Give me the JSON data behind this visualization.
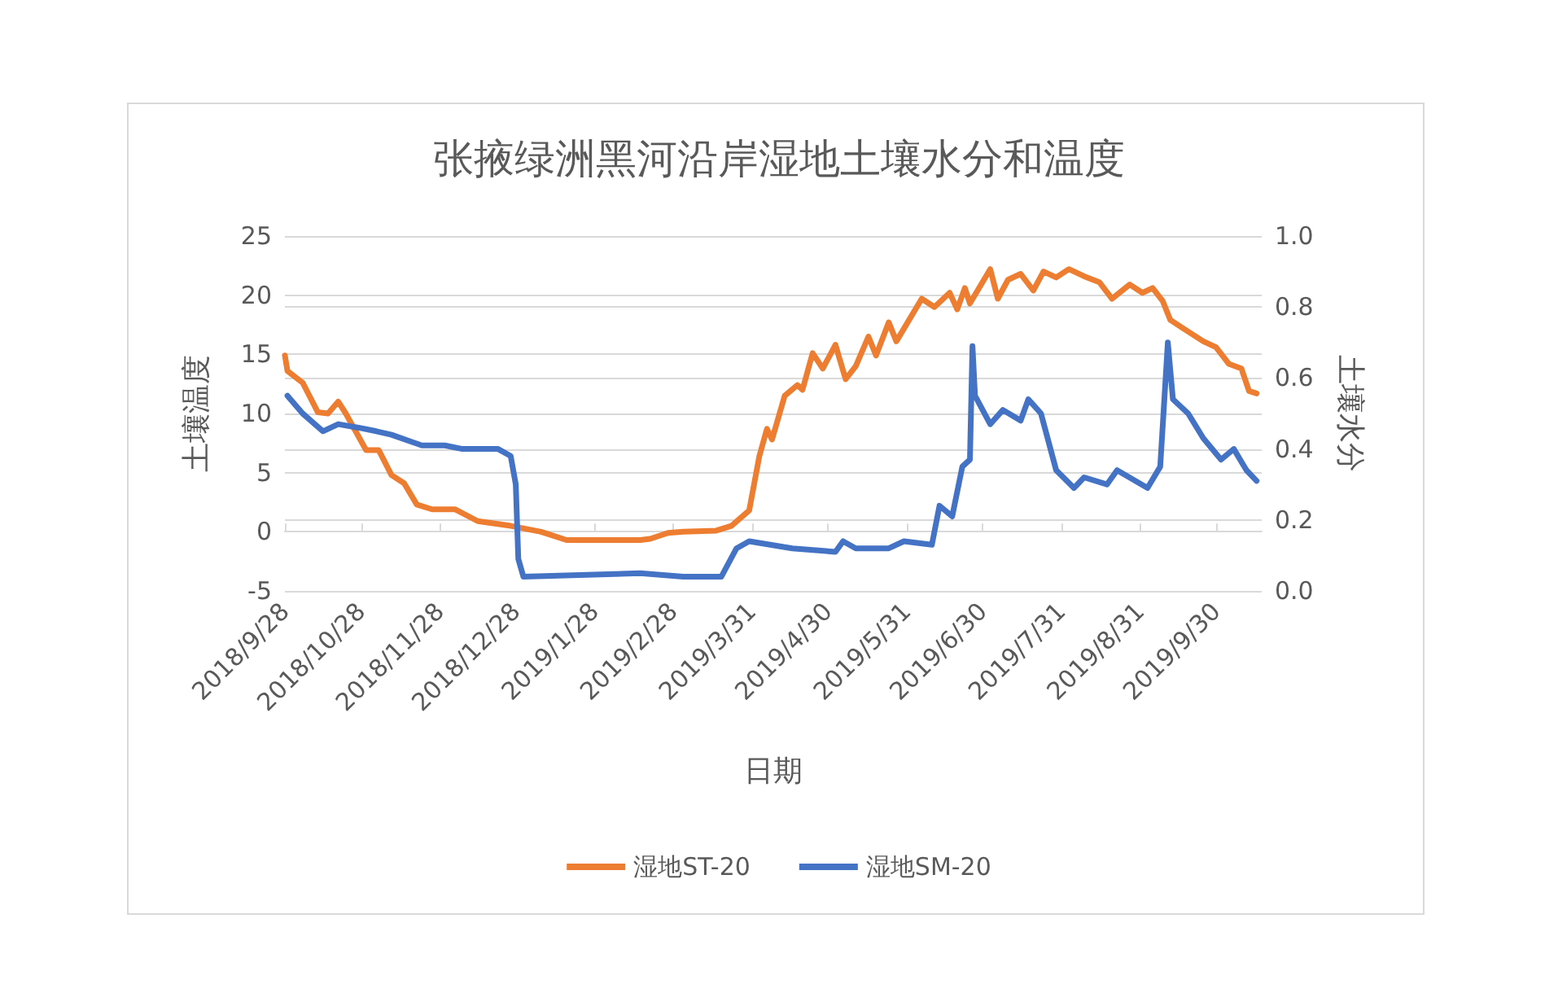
{
  "chart_data": {
    "type": "line",
    "title": "张掖绿洲黑河沿岸湿地土壤水分和温度",
    "xlabel": "日期",
    "ylabel": "土壤温度",
    "y2label": "土壤水分",
    "xlim": [
      "2018-09-28",
      "2019-10-18"
    ],
    "xticks": [
      {
        "value": "2018-09-28",
        "label": "2018/9/28"
      },
      {
        "value": "2018-10-28",
        "label": "2018/10/28"
      },
      {
        "value": "2018-11-28",
        "label": "2018/11/28"
      },
      {
        "value": "2018-12-28",
        "label": "2018/12/28"
      },
      {
        "value": "2019-01-28",
        "label": "2019/1/28"
      },
      {
        "value": "2019-02-28",
        "label": "2019/2/28"
      },
      {
        "value": "2019-03-31",
        "label": "2019/3/31"
      },
      {
        "value": "2019-04-30",
        "label": "2019/4/30"
      },
      {
        "value": "2019-05-31",
        "label": "2019/5/31"
      },
      {
        "value": "2019-06-30",
        "label": "2019/6/30"
      },
      {
        "value": "2019-07-31",
        "label": "2019/7/31"
      },
      {
        "value": "2019-08-31",
        "label": "2019/8/31"
      },
      {
        "value": "2019-09-30",
        "label": "2019/9/30"
      }
    ],
    "ylim": [
      -5,
      25
    ],
    "yticks": [
      -5,
      0,
      5,
      10,
      15,
      20,
      25
    ],
    "y2lim": [
      0,
      1
    ],
    "y2ticks": [
      {
        "value": 0,
        "label": "0.0"
      },
      {
        "value": 0.2,
        "label": "0.2"
      },
      {
        "value": 0.4,
        "label": "0.4"
      },
      {
        "value": 0.6,
        "label": "0.6"
      },
      {
        "value": 0.8,
        "label": "0.8"
      },
      {
        "value": 1,
        "label": "1.0"
      }
    ],
    "grid": "y",
    "legend": "bottom",
    "marker": "none",
    "line_style": "solid",
    "series": [
      {
        "name": "湿地ST-20",
        "color": "#ed7d31",
        "x": [
          "2018-09-28",
          "2018-09-29",
          "2018-10-05",
          "2018-10-11",
          "2018-10-15",
          "2018-10-19",
          "2018-10-22",
          "2018-10-30",
          "2018-11-04",
          "2018-11-09",
          "2018-11-14",
          "2018-11-19",
          "2018-11-25",
          "2018-12-04",
          "2018-12-13",
          "2018-12-26",
          "2019-01-07",
          "2019-01-17",
          "2019-01-29",
          "2019-02-15",
          "2019-02-19",
          "2019-02-26",
          "2019-03-04",
          "2019-03-17",
          "2019-03-23",
          "2019-03-30",
          "2019-04-03",
          "2019-04-06",
          "2019-04-08",
          "2019-04-13",
          "2019-04-18",
          "2019-04-20",
          "2019-04-24",
          "2019-04-28",
          "2019-05-03",
          "2019-05-07",
          "2019-05-11",
          "2019-05-16",
          "2019-05-19",
          "2019-05-24",
          "2019-05-27",
          "2019-06-06",
          "2019-06-11",
          "2019-06-17",
          "2019-06-20",
          "2019-06-23",
          "2019-06-25",
          "2019-07-03",
          "2019-07-06",
          "2019-07-10",
          "2019-07-15",
          "2019-07-20",
          "2019-07-24",
          "2019-07-29",
          "2019-08-03",
          "2019-08-09",
          "2019-08-15",
          "2019-08-20",
          "2019-08-27",
          "2019-09-01",
          "2019-09-05",
          "2019-09-09",
          "2019-09-12",
          "2019-09-17",
          "2019-09-25",
          "2019-09-30",
          "2019-10-05",
          "2019-10-10",
          "2019-10-13",
          "2019-10-16"
        ],
        "values": [
          14.9,
          13.6,
          12.6,
          10.1,
          10.0,
          11.0,
          10.0,
          6.9,
          6.9,
          4.8,
          4.1,
          2.3,
          1.9,
          1.9,
          0.9,
          0.5,
          0.0,
          -0.7,
          -0.7,
          -0.7,
          -0.6,
          -0.1,
          0.0,
          0.1,
          0.5,
          1.8,
          6.4,
          8.7,
          7.8,
          11.5,
          12.4,
          12.0,
          15.1,
          13.8,
          15.8,
          12.9,
          14.0,
          16.5,
          14.9,
          17.7,
          16.1,
          19.7,
          19.0,
          20.2,
          18.8,
          20.6,
          19.3,
          22.2,
          19.7,
          21.3,
          21.8,
          20.4,
          22.0,
          21.5,
          22.2,
          21.6,
          21.1,
          19.7,
          20.9,
          20.2,
          20.6,
          19.5,
          17.9,
          17.2,
          16.1,
          15.6,
          14.2,
          13.8,
          11.9,
          11.7
        ]
      },
      {
        "name": "湿地SM-20",
        "color": "#4472c4",
        "axis": "y2",
        "x": [
          "2018-09-29",
          "2018-10-05",
          "2018-10-13",
          "2018-10-19",
          "2018-10-27",
          "2018-11-03",
          "2018-11-09",
          "2018-11-21",
          "2018-11-30",
          "2018-12-07",
          "2018-12-21",
          "2018-12-26",
          "2018-12-28",
          "2018-12-29",
          "2018-12-31",
          "2019-02-15",
          "2019-03-04",
          "2019-03-19",
          "2019-03-25",
          "2019-03-30",
          "2019-04-16",
          "2019-05-03",
          "2019-05-06",
          "2019-05-11",
          "2019-05-24",
          "2019-05-30",
          "2019-06-10",
          "2019-06-13",
          "2019-06-18",
          "2019-06-22",
          "2019-06-25",
          "2019-06-26",
          "2019-06-27",
          "2019-07-03",
          "2019-07-08",
          "2019-07-15",
          "2019-07-18",
          "2019-07-23",
          "2019-07-29",
          "2019-08-05",
          "2019-08-09",
          "2019-08-18",
          "2019-08-22",
          "2019-09-03",
          "2019-09-08",
          "2019-09-11",
          "2019-09-13",
          "2019-09-19",
          "2019-09-25",
          "2019-10-02",
          "2019-10-07",
          "2019-10-12",
          "2019-10-16"
        ],
        "values": [
          0.55,
          0.5,
          0.45,
          0.47,
          0.46,
          0.45,
          0.44,
          0.41,
          0.41,
          0.4,
          0.4,
          0.38,
          0.3,
          0.09,
          0.04,
          0.05,
          0.04,
          0.04,
          0.12,
          0.14,
          0.12,
          0.11,
          0.14,
          0.12,
          0.12,
          0.14,
          0.13,
          0.24,
          0.21,
          0.35,
          0.37,
          0.69,
          0.55,
          0.47,
          0.51,
          0.48,
          0.54,
          0.5,
          0.34,
          0.29,
          0.32,
          0.3,
          0.34,
          0.29,
          0.35,
          0.7,
          0.54,
          0.5,
          0.43,
          0.37,
          0.4,
          0.34,
          0.31
        ]
      }
    ]
  }
}
